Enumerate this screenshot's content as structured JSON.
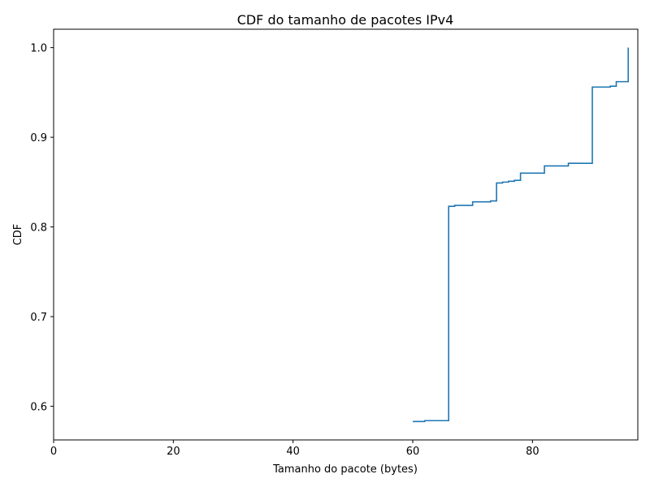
{
  "chart_data": {
    "type": "line",
    "step": "post",
    "title": "CDF do tamanho de pacotes IPv4",
    "xlabel": "Tamanho do pacote (bytes)",
    "ylabel": "CDF",
    "xlim": [
      0,
      97.6
    ],
    "ylim": [
      0.5625,
      1.0205
    ],
    "x_ticks": [
      "0",
      "20",
      "40",
      "60",
      "80"
    ],
    "y_ticks": [
      "0.6",
      "0.7",
      "0.8",
      "0.9",
      "1.0"
    ],
    "grid": false,
    "legend": "none",
    "series": [
      {
        "color": "#1f77b4",
        "x": [
          60,
          62,
          66,
          67,
          70,
          73,
          74,
          75,
          76,
          77,
          78,
          82,
          86,
          90,
          93,
          94,
          96
        ],
        "y": [
          0.583,
          0.584,
          0.823,
          0.824,
          0.828,
          0.829,
          0.849,
          0.85,
          0.851,
          0.852,
          0.86,
          0.868,
          0.871,
          0.956,
          0.957,
          0.962,
          1.0
        ]
      }
    ]
  }
}
